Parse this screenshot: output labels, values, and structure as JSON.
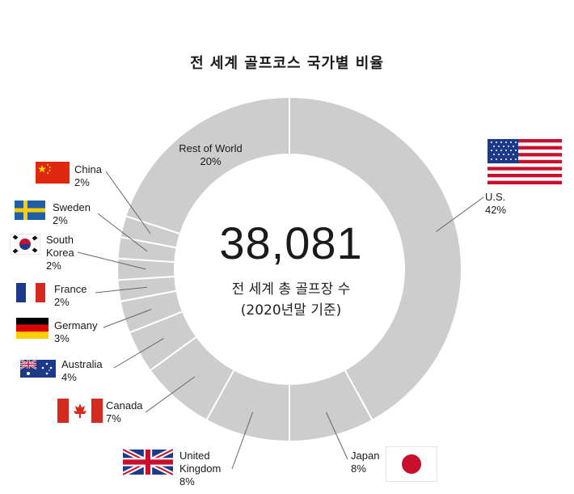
{
  "title": "전 세계 골프코스 국가별 비율",
  "center": {
    "total": "38,081",
    "subtitle_line1": "전 세계 총 골프장 수",
    "subtitle_line2": "(2020년말 기준)"
  },
  "colors": {
    "ring": "#cdcdcd",
    "divider": "#ffffff",
    "leader": "#666666"
  },
  "chart_data": {
    "type": "pie",
    "donut": true,
    "slices": [
      {
        "name": "U.S.",
        "value": 42,
        "label": "42%",
        "flag": "usa-flag-icon"
      },
      {
        "name": "Japan",
        "value": 8,
        "label": "8%",
        "flag": "japan-flag-icon"
      },
      {
        "name": "United Kingdom",
        "value": 8,
        "label": "8%",
        "flag": "uk-flag-icon"
      },
      {
        "name": "Canada",
        "value": 7,
        "label": "7%",
        "flag": "canada-flag-icon"
      },
      {
        "name": "Australia",
        "value": 4,
        "label": "4%",
        "flag": "australia-flag-icon"
      },
      {
        "name": "Germany",
        "value": 3,
        "label": "3%",
        "flag": "germany-flag-icon"
      },
      {
        "name": "France",
        "value": 2,
        "label": "2%",
        "flag": "france-flag-icon"
      },
      {
        "name": "South Korea",
        "value": 2,
        "label": "2%",
        "flag": "south-korea-flag-icon"
      },
      {
        "name": "Sweden",
        "value": 2,
        "label": "2%",
        "flag": "sweden-flag-icon"
      },
      {
        "name": "China",
        "value": 2,
        "label": "2%",
        "flag": "china-flag-icon"
      },
      {
        "name": "Rest of World",
        "value": 20,
        "label": "20%",
        "flag": ""
      }
    ]
  },
  "labels": {
    "us": {
      "line1": "U.S.",
      "pct": "42%"
    },
    "japan": {
      "line1": "Japan",
      "pct": "8%"
    },
    "uk": {
      "line1": "United",
      "line2": "Kingdom",
      "pct": "8%"
    },
    "canada": {
      "line1": "Canada",
      "pct": "7%"
    },
    "australia": {
      "line1": "Australia",
      "pct": "4%"
    },
    "germany": {
      "line1": "Germany",
      "pct": "3%"
    },
    "france": {
      "line1": "France",
      "pct": "2%"
    },
    "korea": {
      "line1": "South",
      "line2": "Korea",
      "pct": "2%"
    },
    "sweden": {
      "line1": "Sweden",
      "pct": "2%"
    },
    "china": {
      "line1": "China",
      "pct": "2%"
    },
    "rest": {
      "line1": "Rest of World",
      "pct": "20%"
    }
  }
}
